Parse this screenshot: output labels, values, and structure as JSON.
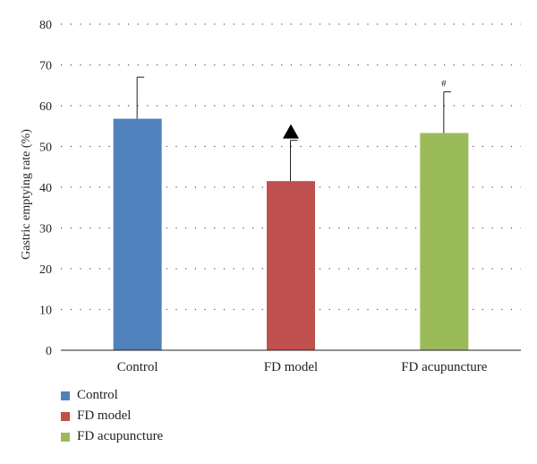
{
  "chart_data": {
    "type": "bar",
    "title": "",
    "xlabel": "",
    "ylabel": "Gastric emptying rate (%)",
    "ylim": [
      0,
      80
    ],
    "yticks": [
      0,
      10,
      20,
      30,
      40,
      50,
      60,
      70,
      80
    ],
    "categories": [
      "Control",
      "FD model",
      "FD acupuncture"
    ],
    "values": [
      56.8,
      41.5,
      53.3
    ],
    "error_upper": [
      67.0,
      51.5,
      63.4
    ],
    "colors": [
      "#4f81bd",
      "#c0504d",
      "#9bbb59"
    ],
    "annotations": [
      "",
      "▲",
      "#"
    ],
    "grid": "dotted horizontal",
    "legend": {
      "position": "bottom-left",
      "entries": [
        "Control",
        "FD model",
        "FD acupuncture"
      ]
    }
  }
}
